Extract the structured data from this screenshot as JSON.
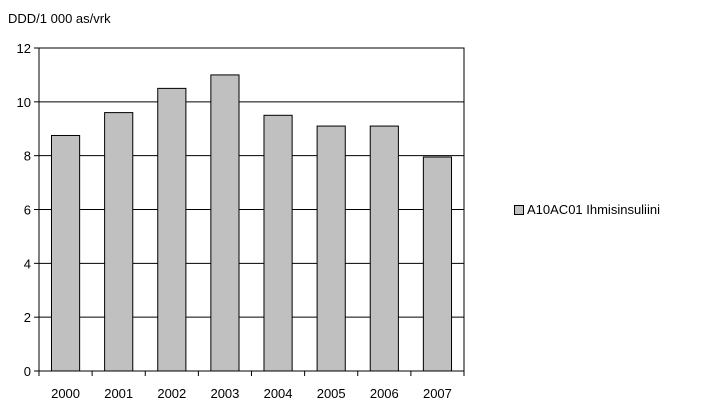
{
  "chart_data": {
    "type": "bar",
    "ylabel": "DDD/1 000 as/vrk",
    "categories": [
      "2000",
      "2001",
      "2002",
      "2003",
      "2004",
      "2005",
      "2006",
      "2007"
    ],
    "series": [
      {
        "name": "A10AC01 Ihmisinsuliini",
        "values": [
          8.75,
          9.6,
          10.5,
          11.0,
          9.5,
          9.1,
          9.1,
          7.95
        ],
        "color": "#c0c0c0"
      }
    ],
    "ylim": [
      0,
      12
    ],
    "yticks": [
      0,
      2,
      4,
      6,
      8,
      10,
      12
    ],
    "grid": true,
    "legend_position": "right"
  }
}
